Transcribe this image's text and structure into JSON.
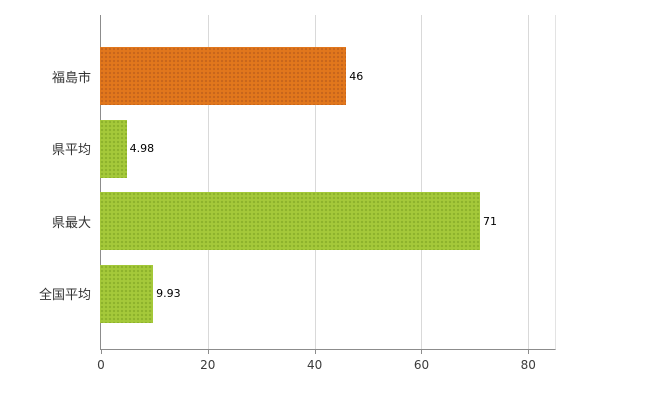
{
  "chart_data": {
    "type": "bar",
    "orientation": "horizontal",
    "title": "",
    "xlabel": "",
    "ylabel": "",
    "categories": [
      "福島市",
      "県平均",
      "県最大",
      "全国平均"
    ],
    "values": [
      46,
      4.98,
      71,
      9.93
    ],
    "value_labels": [
      "46",
      "4.98",
      "71",
      "9.93"
    ],
    "bar_colors": [
      "#e2771c",
      "#a5c93a",
      "#a5c93a",
      "#a5c93a"
    ],
    "bar_dot_colors": [
      "#c7651c",
      "#8db22c",
      "#8db22c",
      "#8db22c"
    ],
    "x_ticks": [
      "0",
      "20",
      "40",
      "60",
      "80"
    ],
    "x_tick_values": [
      0,
      20,
      40,
      60,
      80
    ],
    "xlim": [
      0,
      85
    ],
    "grid": "vertical",
    "legend": "none",
    "axis_color": "#8c8c8c",
    "grid_color": "#d9d9d9",
    "background": "#ffffff"
  }
}
